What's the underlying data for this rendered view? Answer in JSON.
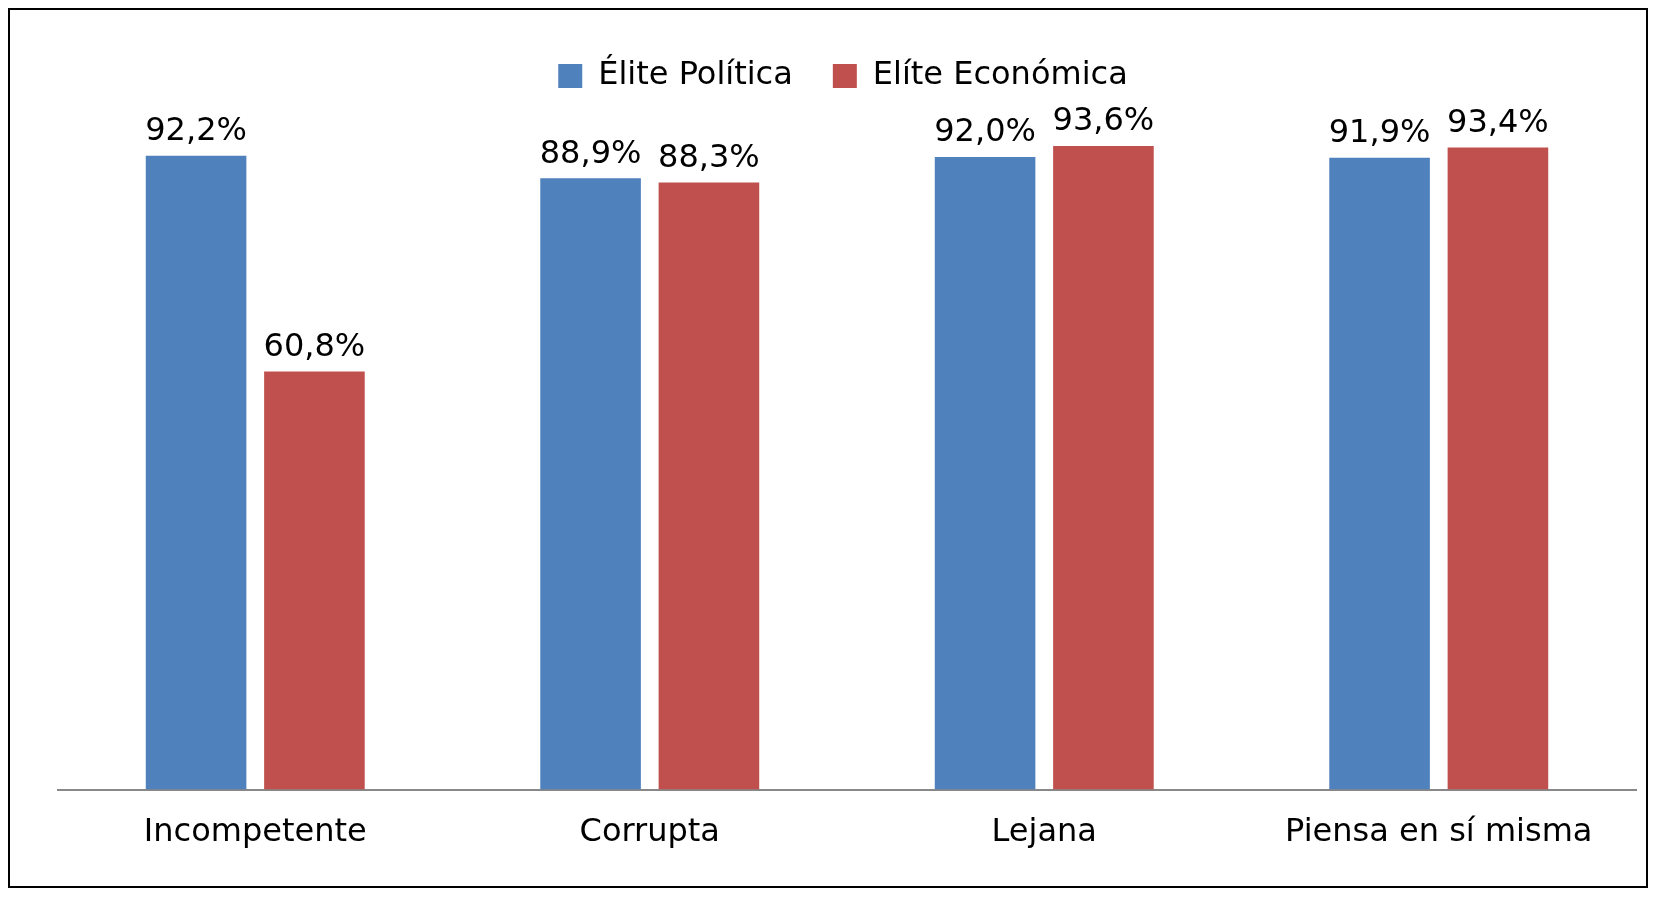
{
  "chart_data": {
    "type": "bar",
    "categories": [
      "Incompetente",
      "Corrupta",
      "Lejana",
      "Piensa en sí misma"
    ],
    "series": [
      {
        "name": "Élite Política",
        "color": "#4f81bd",
        "values": [
          92.2,
          88.9,
          92.0,
          91.9
        ],
        "value_labels": [
          "92,2%",
          "88,9%",
          "92,0%",
          "91,9%"
        ]
      },
      {
        "name": "Elíte Económica",
        "color": "#c0504d",
        "values": [
          60.8,
          88.3,
          93.6,
          93.4
        ],
        "value_labels": [
          "60,8%",
          "88,3%",
          "93,6%",
          "93,4%"
        ]
      }
    ],
    "legend": "top",
    "grid": false
  }
}
